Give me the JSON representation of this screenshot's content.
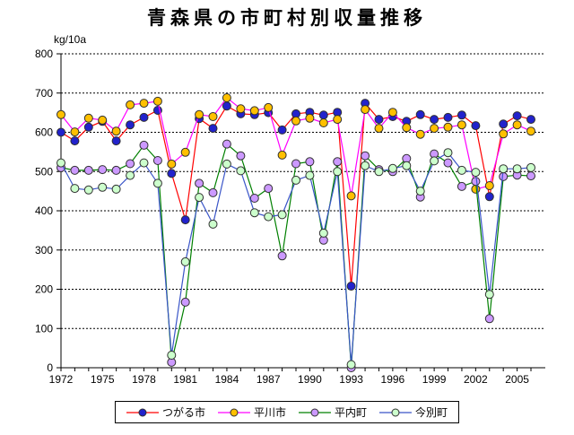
{
  "chart_data": {
    "type": "line",
    "title": "青森県の市町村別収量推移",
    "ylabel": "kg/10a",
    "ylim": [
      0,
      800
    ],
    "ytick_step": 100,
    "grid": "horizontal-dashed",
    "legend_position": "bottom",
    "x": [
      1972,
      1973,
      1974,
      1975,
      1976,
      1977,
      1978,
      1979,
      1980,
      1981,
      1982,
      1983,
      1984,
      1985,
      1986,
      1987,
      1988,
      1989,
      1990,
      1991,
      1992,
      1993,
      1994,
      1995,
      1996,
      1997,
      1998,
      1999,
      2000,
      2001,
      2002,
      2003,
      2004,
      2005,
      2006
    ],
    "x_tick_labels": [
      "1972",
      "1975",
      "1978",
      "1981",
      "1984",
      "1987",
      "1990",
      "1993",
      "1996",
      "1999",
      "2002",
      "2005"
    ],
    "y_tick_labels": [
      "0",
      "100",
      "200",
      "300",
      "400",
      "500",
      "600",
      "700",
      "800"
    ],
    "marker_border_color": "#303030",
    "series": [
      {
        "name": "つがる市",
        "line_color": "#ff0000",
        "marker_color": "#2222cc",
        "values": [
          600,
          578,
          613,
          628,
          578,
          619,
          638,
          656,
          495,
          377,
          635,
          610,
          667,
          647,
          645,
          650,
          606,
          647,
          651,
          644,
          651,
          208,
          674,
          633,
          640,
          628,
          645,
          633,
          638,
          644,
          617,
          436,
          621,
          642,
          633
        ]
      },
      {
        "name": "平川市",
        "line_color": "#ff00ff",
        "marker_color": "#ffc000",
        "values": [
          645,
          601,
          636,
          631,
          603,
          670,
          674,
          679,
          519,
          549,
          645,
          640,
          688,
          660,
          655,
          663,
          542,
          629,
          636,
          624,
          633,
          438,
          658,
          610,
          651,
          612,
          595,
          610,
          613,
          619,
          455,
          464,
          596,
          619,
          603
        ]
      },
      {
        "name": "平内町",
        "line_color": "#008000",
        "marker_color": "#cc99ff",
        "values": [
          510,
          503,
          503,
          505,
          503,
          520,
          567,
          528,
          14,
          167,
          470,
          446,
          570,
          540,
          432,
          457,
          285,
          520,
          525,
          325,
          525,
          0,
          540,
          505,
          500,
          533,
          435,
          545,
          522,
          462,
          475,
          125,
          487,
          491,
          489
        ]
      },
      {
        "name": "今別町",
        "line_color": "#3a55c8",
        "marker_color": "#ccffcc",
        "values": [
          522,
          457,
          453,
          460,
          455,
          490,
          522,
          470,
          32,
          270,
          434,
          366,
          519,
          502,
          395,
          385,
          390,
          478,
          490,
          343,
          500,
          8,
          515,
          500,
          508,
          515,
          450,
          527,
          548,
          503,
          498,
          187,
          507,
          507,
          510
        ]
      }
    ]
  }
}
